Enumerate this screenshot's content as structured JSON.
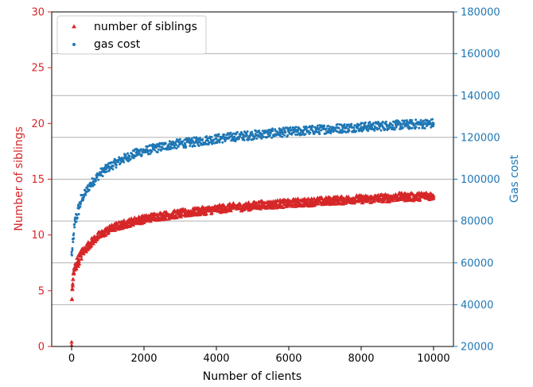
{
  "chart_data": {
    "type": "scatter",
    "xlabel": "Number of clients",
    "ylabel_left": "Number of siblings",
    "ylabel_right": "Gas cost",
    "xlim": [
      -550,
      10550
    ],
    "ylim_left": [
      0,
      30
    ],
    "ylim_right": [
      20000,
      180000
    ],
    "x_ticks": [
      0,
      2000,
      4000,
      6000,
      8000,
      10000
    ],
    "x_tick_labels": [
      "0",
      "2000",
      "4000",
      "6000",
      "8000",
      "10000"
    ],
    "y_left_ticks": [
      0,
      5,
      10,
      15,
      20,
      25,
      30
    ],
    "y_left_tick_labels": [
      "0",
      "5",
      "10",
      "15",
      "20",
      "25",
      "30"
    ],
    "y_right_ticks": [
      20000,
      40000,
      60000,
      80000,
      100000,
      120000,
      140000,
      160000,
      180000
    ],
    "y_right_tick_labels": [
      "20000",
      "40000",
      "60000",
      "80000",
      "100000",
      "120000",
      "140000",
      "160000",
      "180000"
    ],
    "grid": "horizontal lines at right-axis ticks",
    "legend_position": "top-left",
    "series": [
      {
        "name": "number of siblings",
        "axis": "left",
        "marker": "triangle",
        "color": "#d62728",
        "x": [
          0,
          10,
          20,
          30,
          40,
          60,
          80,
          100,
          150,
          200,
          250,
          300,
          400,
          500,
          600,
          700,
          800,
          900,
          1000,
          1200,
          1400,
          1600,
          1800,
          2000,
          2250,
          2500,
          2750,
          3000,
          3250,
          3500,
          3750,
          4000,
          4250,
          4500,
          4750,
          5000,
          5250,
          5500,
          5750,
          6000,
          6250,
          6500,
          6750,
          7000,
          7250,
          7500,
          7750,
          8000,
          8250,
          8500,
          8750,
          9000,
          9250,
          9500,
          9750,
          10000
        ],
        "y": [
          0.1,
          4.2,
          5.1,
          5.6,
          6.0,
          6.5,
          6.9,
          7.1,
          7.5,
          7.8,
          8.1,
          8.4,
          8.8,
          9.2,
          9.5,
          9.8,
          10.0,
          10.2,
          10.4,
          10.7,
          10.9,
          11.1,
          11.3,
          11.4,
          11.6,
          11.7,
          11.8,
          11.9,
          12.0,
          12.1,
          12.2,
          12.3,
          12.4,
          12.5,
          12.5,
          12.6,
          12.7,
          12.7,
          12.8,
          12.8,
          12.9,
          12.9,
          13.0,
          13.0,
          13.1,
          13.1,
          13.2,
          13.2,
          13.2,
          13.3,
          13.3,
          13.4,
          13.4,
          13.4,
          13.5,
          13.5
        ]
      },
      {
        "name": "gas cost",
        "axis": "right",
        "marker": "dot",
        "color": "#1f77b4",
        "x": [
          0,
          20,
          40,
          60,
          80,
          100,
          150,
          200,
          250,
          300,
          400,
          500,
          600,
          700,
          800,
          900,
          1000,
          1200,
          1400,
          1600,
          1800,
          2000,
          2250,
          2500,
          2750,
          3000,
          3250,
          3500,
          3750,
          4000,
          4250,
          4500,
          4750,
          5000,
          5250,
          5500,
          5750,
          6000,
          6250,
          6500,
          6750,
          7000,
          7250,
          7500,
          7750,
          8000,
          8250,
          8500,
          8750,
          9000,
          9250,
          9500,
          9750,
          10000
        ],
        "y": [
          64000,
          66000,
          70000,
          74000,
          77000,
          80000,
          83000,
          86000,
          89000,
          91000,
          94000,
          97000,
          99000,
          101000,
          103000,
          104000,
          105500,
          107500,
          109500,
          111000,
          112500,
          113500,
          114500,
          115500,
          116500,
          117000,
          117500,
          118000,
          118700,
          119300,
          119800,
          120300,
          120700,
          121100,
          121500,
          121900,
          122300,
          122600,
          122900,
          123300,
          123600,
          123900,
          124200,
          124400,
          124700,
          125000,
          125200,
          125400,
          125700,
          125900,
          126100,
          126300,
          126500,
          126700
        ]
      }
    ]
  },
  "colors": {
    "left_axis": "#d62728",
    "right_axis": "#1f77b4",
    "grid": "#b0b0b0",
    "axis_line": "#000000"
  }
}
